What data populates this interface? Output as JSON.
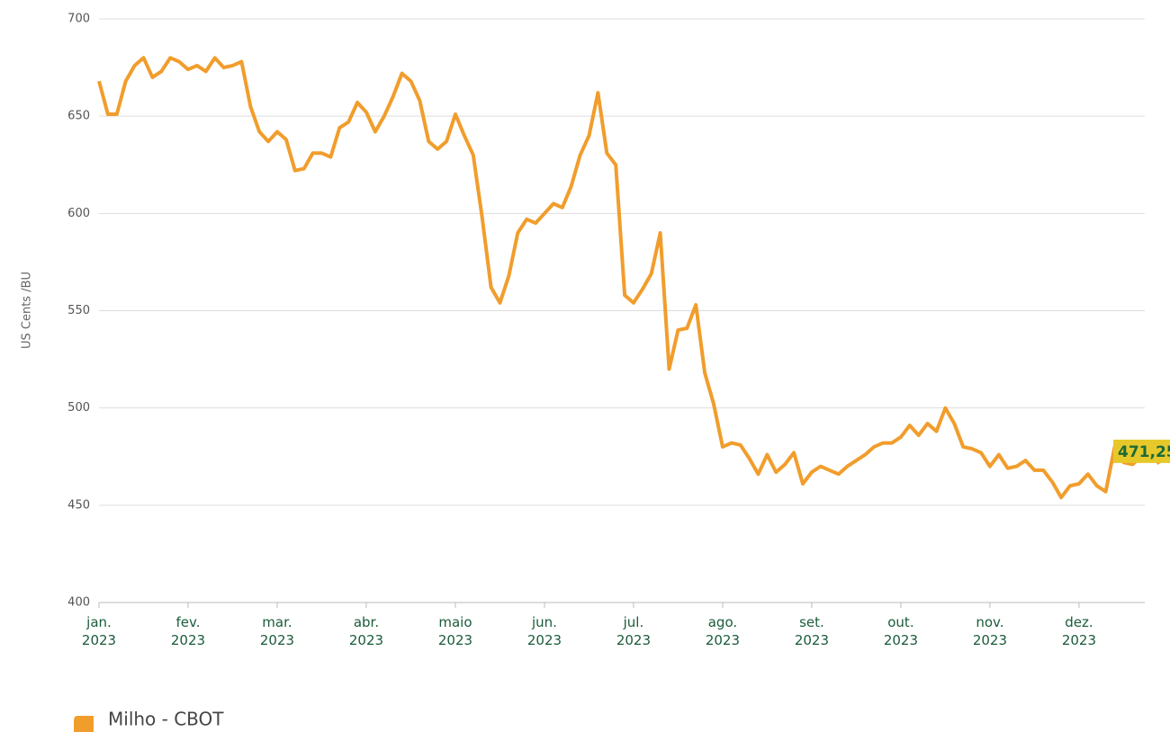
{
  "chart_data": {
    "type": "line",
    "y_label": "US Cents /BU",
    "categories": [
      "jan. 2023",
      null,
      null,
      null,
      null,
      null,
      null,
      null,
      null,
      null,
      "fev. 2023",
      null,
      null,
      null,
      null,
      null,
      null,
      null,
      null,
      null,
      "mar. 2023",
      null,
      null,
      null,
      null,
      null,
      null,
      null,
      null,
      null,
      "abr. 2023",
      null,
      null,
      null,
      null,
      null,
      null,
      null,
      null,
      null,
      "maio 2023",
      null,
      null,
      null,
      null,
      null,
      null,
      null,
      null,
      null,
      "jun. 2023",
      null,
      null,
      null,
      null,
      null,
      null,
      null,
      null,
      null,
      "jul. 2023",
      null,
      null,
      null,
      null,
      null,
      null,
      null,
      null,
      null,
      "ago. 2023",
      null,
      null,
      null,
      null,
      null,
      null,
      null,
      null,
      null,
      "set. 2023",
      null,
      null,
      null,
      null,
      null,
      null,
      null,
      null,
      null,
      "out. 2023",
      null,
      null,
      null,
      null,
      null,
      null,
      null,
      null,
      null,
      "nov. 2023",
      null,
      null,
      null,
      null,
      null,
      null,
      null,
      null,
      null,
      "dez. 2023",
      null,
      null,
      null,
      null,
      null,
      null,
      null,
      null,
      null
    ],
    "series": [
      {
        "name": "Milho - CBOT",
        "color": "#f19d2c",
        "values": [
          668,
          651,
          651,
          668,
          676,
          680,
          670,
          673,
          680,
          678,
          674,
          676,
          673,
          680,
          675,
          676,
          678,
          655,
          642,
          637,
          642,
          638,
          622,
          623,
          631,
          631,
          629,
          644,
          647,
          657,
          652,
          642,
          650,
          660,
          672,
          668,
          658,
          637,
          633,
          637,
          651,
          640,
          630,
          598,
          562,
          554,
          568,
          590,
          597,
          595,
          600,
          605,
          603,
          614,
          630,
          640,
          662,
          631,
          625,
          558,
          554,
          561,
          569,
          590,
          520,
          540,
          541,
          553,
          518,
          502,
          480,
          482,
          481,
          474,
          466,
          476,
          467,
          471,
          477,
          461,
          467,
          470,
          468,
          466,
          470,
          473,
          476,
          480,
          482,
          482,
          485,
          491,
          486,
          492,
          488,
          500,
          492,
          480,
          479,
          477,
          470,
          476,
          469,
          470,
          473,
          468,
          468,
          462,
          454,
          460,
          461,
          466,
          460,
          457,
          480,
          472,
          471,
          475,
          478,
          471.25
        ]
      }
    ],
    "last_value_label": {
      "value": 471.25,
      "label": "471,25"
    },
    "ylim": [
      400,
      700
    ],
    "yticks": [
      400,
      450,
      500,
      550,
      600,
      650,
      700
    ],
    "grid": true
  }
}
